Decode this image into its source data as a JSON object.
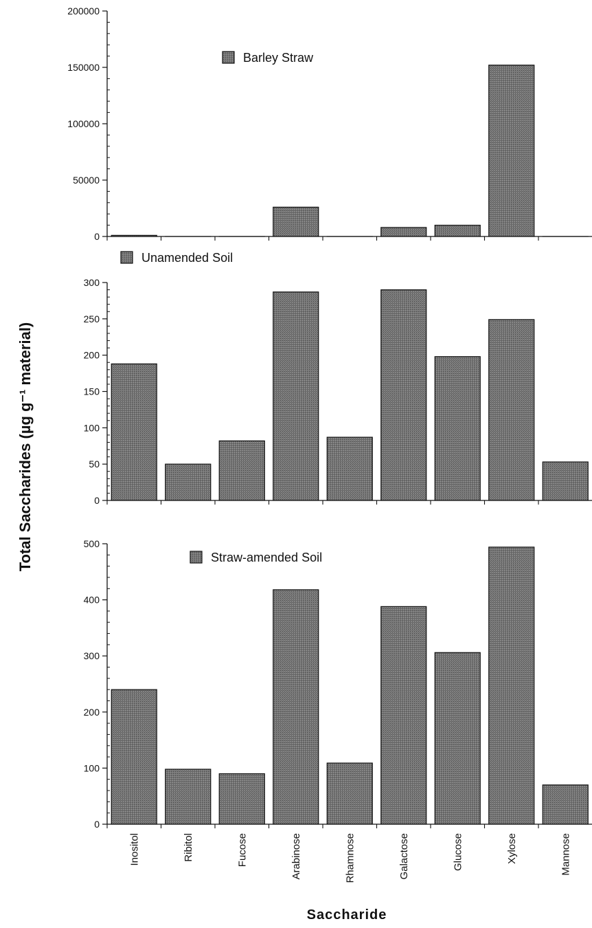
{
  "chart_data": {
    "type": "bar",
    "ylabel": "Total Saccharides (µg g⁻¹   material)",
    "xlabel": "Saccharide",
    "categories": [
      "Inositol",
      "Ribitol",
      "Fucose",
      "Arabinose",
      "Rhamnose",
      "Galactose",
      "Glucose",
      "Xylose",
      "Mannose"
    ],
    "bar_color": "#6e6e6e",
    "grid": false,
    "panels": [
      {
        "legend": "Barley Straw",
        "legend_position": "top-center",
        "ylim": [
          0,
          200000
        ],
        "yticks": [
          0,
          50000,
          100000,
          150000,
          200000
        ],
        "values": [
          1000,
          0,
          0,
          26000,
          0,
          8000,
          10000,
          152000,
          0
        ]
      },
      {
        "legend": "Unamended Soil",
        "legend_position": "top-left",
        "ylim": [
          0,
          300
        ],
        "yticks": [
          0,
          50,
          100,
          150,
          200,
          250,
          300
        ],
        "values": [
          188,
          50,
          82,
          287,
          87,
          290,
          198,
          249,
          53
        ]
      },
      {
        "legend": "Straw-amended Soil",
        "legend_position": "top-left",
        "ylim": [
          0,
          500
        ],
        "yticks": [
          0,
          100,
          200,
          300,
          400,
          500
        ],
        "values": [
          240,
          98,
          90,
          418,
          109,
          388,
          306,
          494,
          70
        ]
      }
    ]
  }
}
